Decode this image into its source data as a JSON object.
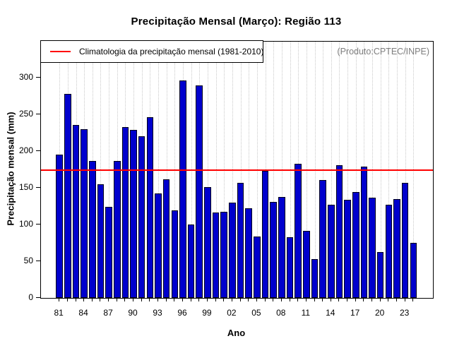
{
  "title": "Precipitação Mensal (Março): Região 113",
  "annotation": "(Produto:CPTEC/INPE)",
  "legend": {
    "label": "Climatologia da precipitação mensal (1981-2010)"
  },
  "chart_data": {
    "type": "bar",
    "title": "Precipitação Mensal (Março): Região 113",
    "xlabel": "Ano",
    "ylabel": "Precipitação mensal (mm)",
    "years": [
      1981,
      1982,
      1983,
      1984,
      1985,
      1986,
      1987,
      1988,
      1989,
      1990,
      1991,
      1992,
      1993,
      1994,
      1995,
      1996,
      1997,
      1998,
      1999,
      2000,
      2001,
      2002,
      2003,
      2004,
      2005,
      2006,
      2007,
      2008,
      2009,
      2010,
      2011,
      2012,
      2013,
      2014,
      2015,
      2016,
      2017,
      2018,
      2019,
      2020,
      2021,
      2022,
      2023,
      2024
    ],
    "values": [
      195,
      278,
      236,
      230,
      187,
      155,
      124,
      187,
      233,
      229,
      220,
      246,
      142,
      162,
      119,
      296,
      100,
      289,
      151,
      116,
      117,
      130,
      157,
      122,
      84,
      173,
      131,
      138,
      83,
      183,
      91,
      53,
      161,
      127,
      181,
      134,
      144,
      179,
      137,
      63,
      127,
      135,
      157,
      75
    ],
    "x_tick_labels": [
      "81",
      "84",
      "87",
      "90",
      "93",
      "96",
      "99",
      "02",
      "05",
      "08",
      "11",
      "14",
      "17",
      "20",
      "23"
    ],
    "x_tick_label_every": 3,
    "y_ticks": [
      0,
      50,
      100,
      150,
      200,
      250,
      300
    ],
    "ylim": [
      0,
      349
    ],
    "climatology_value": 174,
    "legend_position": "top-left",
    "grid": "vertical-dotted",
    "colors": {
      "bar_fill": "#0000CD",
      "bar_border": "#00001a",
      "climatology_line": "#FF0000",
      "grid": "#C9C9C9",
      "annotation_text": "#7E7E7E"
    }
  }
}
